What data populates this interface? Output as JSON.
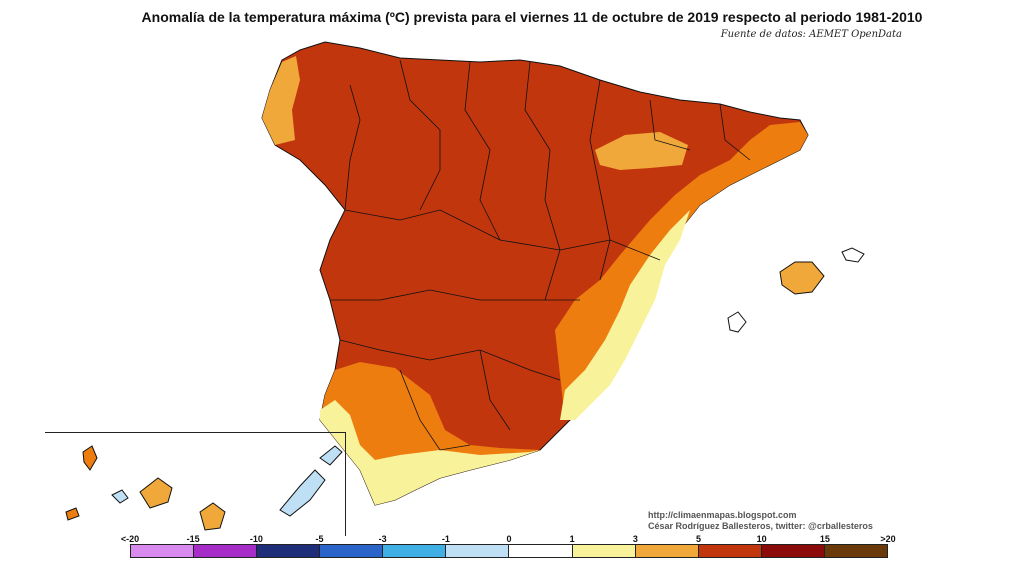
{
  "title": "Anomalía de la temperatura máxima (ºC) prevista para el viernes 11 de octubre de 2019 respecto al periodo 1981-2010",
  "source": "Fuente de datos: AEMET OpenData",
  "credits": {
    "line1": "http://climaenmapas.blogspot.com",
    "line2": "César Rodríguez Ballesteros, twitter: @crballesteros"
  },
  "colors": {
    "cat_gt10": "#c2360e",
    "cat_5_10": "#ee7d10",
    "cat_3_5": "#f1a83a",
    "cat_1_3": "#f8f39a",
    "cat_0_1": "#ffffff",
    "cat_15_20": "#8b0a0a",
    "outline": "#111111"
  },
  "legend": {
    "swatches": [
      "#d98aef",
      "#a62dc8",
      "#1e2e78",
      "#2a64c8",
      "#40b0e4",
      "#bfe0f4",
      "#ffffff",
      "#f8f39a",
      "#f1a83a",
      "#c2360e",
      "#8b0a0a",
      "#6a3a0a"
    ],
    "ticks": [
      "<-20",
      "-15",
      "-10",
      "-5",
      "-3",
      "-1",
      "0",
      "1",
      "3",
      "5",
      "10",
      "15",
      ">20"
    ]
  }
}
